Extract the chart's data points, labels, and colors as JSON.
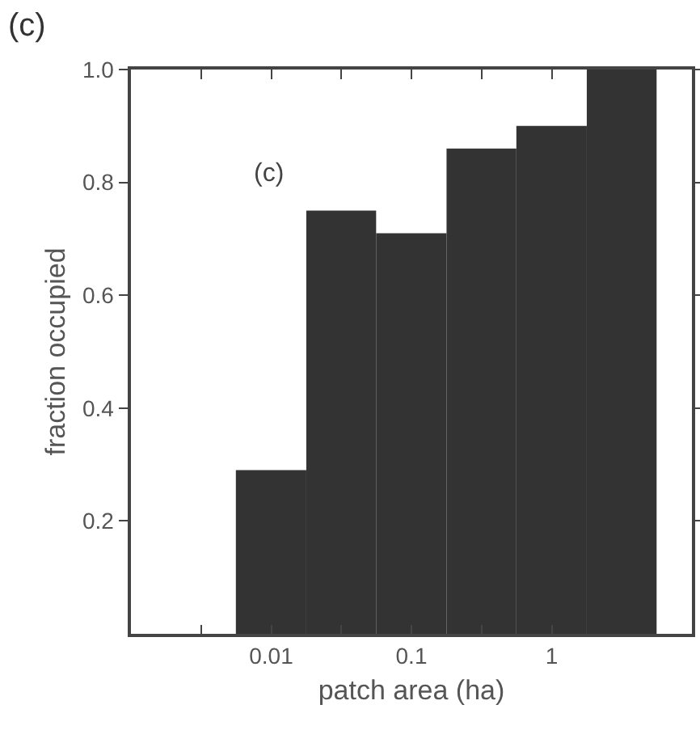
{
  "chart_data": {
    "type": "histogram",
    "xlabel": "patch area (ha)",
    "ylabel": "fraction occupied",
    "annotations": [
      "(c)",
      "(c)"
    ],
    "bins": [
      0.0056,
      0.0178,
      0.056,
      0.178,
      0.56,
      1.78,
      5.6
    ],
    "values": [
      0.29,
      0.75,
      0.71,
      0.86,
      0.9,
      1.0
    ],
    "color": "#333333",
    "log": "x",
    "grid": false,
    "xlim": [
      0.001,
      10
    ],
    "xticks": [
      {
        "value": 0.00316,
        "label": null
      },
      0.01,
      {
        "value": 0.0316,
        "label": null
      },
      0.1,
      {
        "value": 0.316,
        "label": null
      },
      1
    ],
    "ylim": [
      0,
      1
    ],
    "yticks": [
      0.2,
      0.4,
      0.6,
      0.8,
      {
        "value": 1,
        "label": "1.0"
      }
    ]
  }
}
